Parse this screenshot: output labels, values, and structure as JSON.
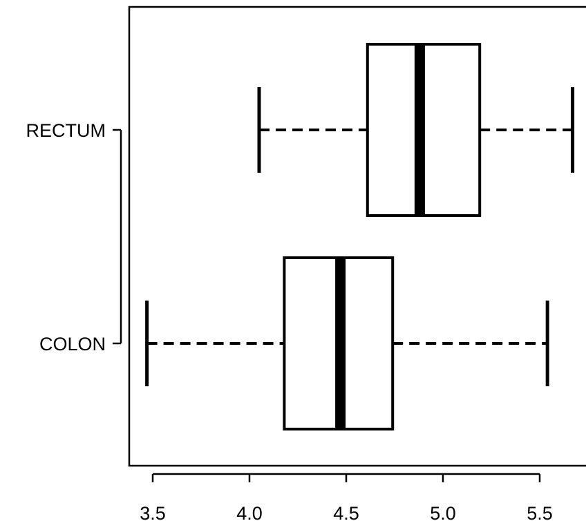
{
  "chart_data": {
    "type": "boxplot",
    "orientation": "horizontal",
    "title": "",
    "xlabel": "",
    "ylabel": "",
    "xlim": [
      3.45,
      5.78
    ],
    "x_ticks": [
      3.5,
      4.0,
      4.5,
      5.0,
      5.5
    ],
    "x_tick_labels": [
      "3.5",
      "4.0",
      "4.5",
      "5.0",
      "5.5"
    ],
    "categories": [
      "RECTUM",
      "COLON"
    ],
    "series": [
      {
        "category": "RECTUM",
        "whisker_low": 4.05,
        "q1": 4.61,
        "median": 4.88,
        "q3": 5.19,
        "whisker_high": 5.67
      },
      {
        "category": "COLON",
        "whisker_low": 3.47,
        "q1": 4.18,
        "median": 4.47,
        "q3": 4.74,
        "whisker_high": 5.54
      }
    ],
    "grid": false,
    "colors": {
      "stroke": "#000000",
      "fill": "#ffffff"
    }
  }
}
